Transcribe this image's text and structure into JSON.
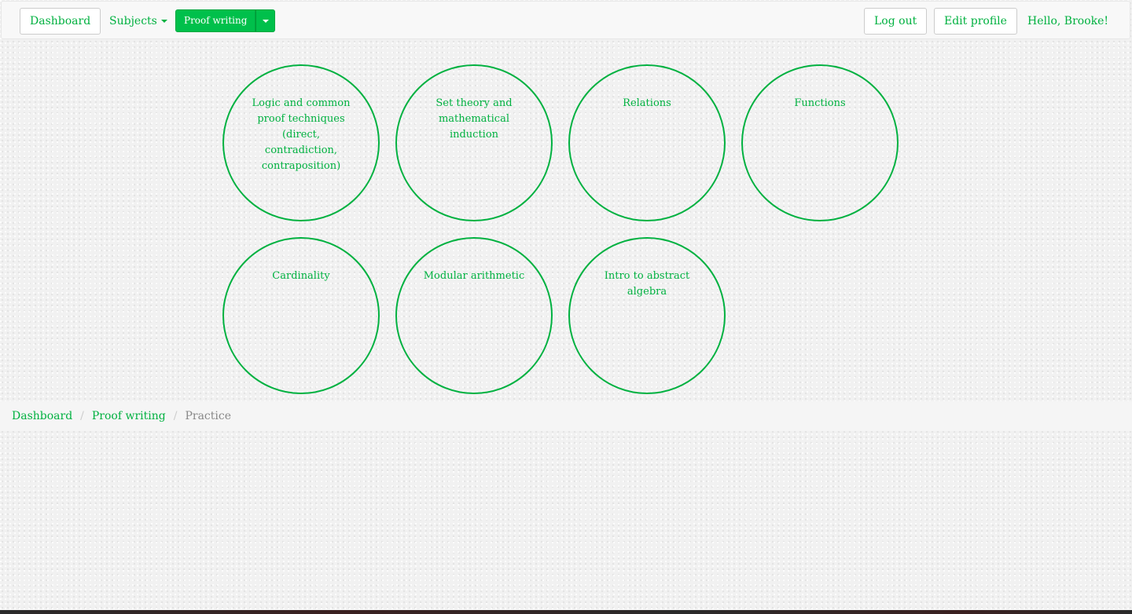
{
  "navbar": {
    "dashboard_label": "Dashboard",
    "subjects_label": "Subjects",
    "current_subject_label": "Proof writing",
    "logout_label": "Log out",
    "edit_profile_label": "Edit profile",
    "greeting": "Hello, Brooke!"
  },
  "topics": [
    {
      "label": "Logic and common proof techniques (direct, contradiction, contraposition)"
    },
    {
      "label": "Set theory and mathematical induction"
    },
    {
      "label": "Relations"
    },
    {
      "label": "Functions"
    },
    {
      "label": "Cardinality"
    },
    {
      "label": "Modular arithmetic"
    },
    {
      "label": "Intro to abstract algebra"
    }
  ],
  "breadcrumb": {
    "items": [
      "Dashboard",
      "Proof writing"
    ],
    "separator": "/",
    "active": "Practice"
  },
  "colors": {
    "accent": "#00b140",
    "button_fill": "#00c04b"
  }
}
